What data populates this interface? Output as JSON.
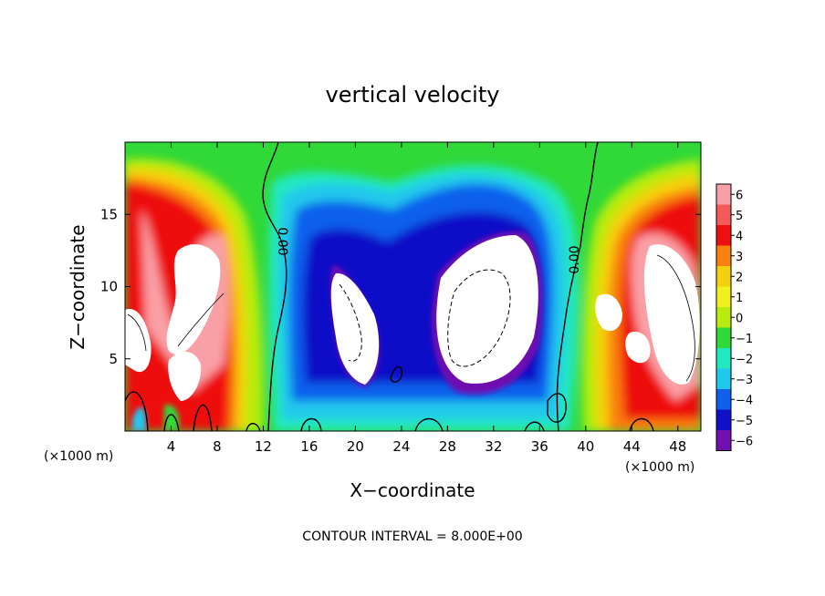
{
  "chart_data": {
    "type": "heatmap",
    "title": "vertical velocity",
    "xlabel": "X−coordinate",
    "ylabel": "Z−coordinate",
    "x_unit_left": "(×1000 m)",
    "x_unit_right": "(×1000 m)",
    "xlim": [
      0,
      50
    ],
    "ylim": [
      0,
      20
    ],
    "x_ticks": [
      4,
      8,
      12,
      16,
      20,
      24,
      28,
      32,
      36,
      40,
      44,
      48
    ],
    "x_tick_labels": [
      "4",
      "8",
      "12",
      "16",
      "20",
      "24",
      "28",
      "32",
      "36",
      "40",
      "44",
      "48"
    ],
    "y_ticks": [
      5,
      10,
      15
    ],
    "y_tick_labels": [
      "5",
      "10",
      "15"
    ],
    "colorbar": {
      "levels": [
        6,
        5,
        4,
        3,
        2,
        1,
        0,
        -1,
        -2,
        -3,
        -4,
        -5,
        -6
      ],
      "labels": [
        "6",
        "5",
        "4",
        "3",
        "2",
        "1",
        "0",
        "−1",
        "−2",
        "−3",
        "−4",
        "−5",
        "−6"
      ],
      "colors": [
        "#f9a0a6",
        "#f55a5a",
        "#ee1010",
        "#fa8010",
        "#f5d010",
        "#f0f020",
        "#b8ec10",
        "#30d838",
        "#20e8c0",
        "#20c8ec",
        "#1060ec",
        "#1010c8",
        "#7010b0"
      ]
    },
    "contour_labels": [
      "0.00",
      "0.00"
    ],
    "footer": "CONTOUR INTERVAL = 8.000E+00",
    "features": [
      {
        "region": "left updraft",
        "x_range": [
          0,
          12
        ],
        "z_range": [
          0,
          19
        ],
        "sign": "positive",
        "peak": "> 6"
      },
      {
        "region": "central downdraft",
        "x_range": [
          13,
          39
        ],
        "z_range": [
          1,
          19
        ],
        "sign": "negative",
        "peak": "< -6"
      },
      {
        "region": "right updraft",
        "x_range": [
          40,
          50
        ],
        "z_range": [
          1,
          19
        ],
        "sign": "positive",
        "peak": "> 6"
      }
    ]
  }
}
